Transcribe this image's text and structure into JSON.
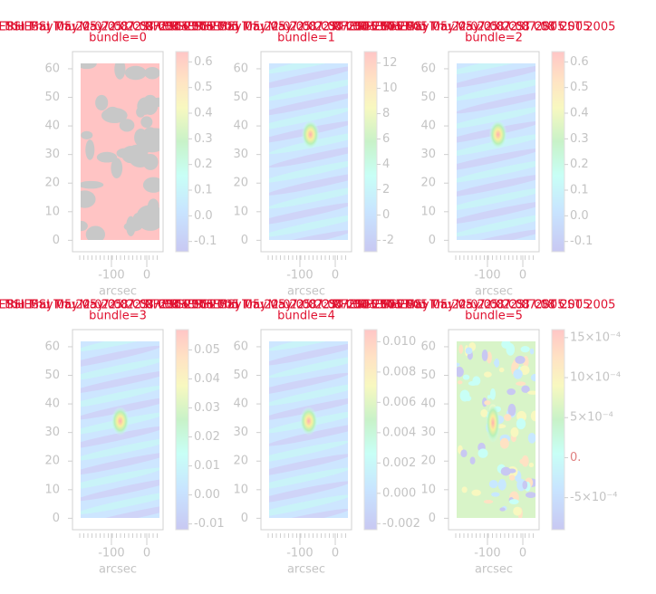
{
  "chart_data": [
    {
      "type": "heatmap",
      "title": "RHESSI Thu May 05 22:07:08 CST 2005",
      "subtitle": "bundle=0",
      "xlabel": "arcsec",
      "xlim": [
        -210,
        46
      ],
      "xticks": [
        -100,
        0
      ],
      "ylim": [
        -4,
        66
      ],
      "yticks": [
        0,
        10,
        20,
        30,
        40,
        50,
        60
      ],
      "clim": [
        -0.14,
        0.64
      ],
      "cticks": [
        -0.1,
        {
          "value": 0,
          "label": "0.0"
        },
        0.1,
        0.2,
        0.3,
        0.4,
        0.5,
        0.6
      ]
    },
    {
      "type": "heatmap",
      "title": "RHESSI Thu May 05 22:07:08 CST 2005",
      "subtitle": "bundle=1",
      "xlabel": "arcsec",
      "xlim": [
        -210,
        46
      ],
      "xticks": [
        -100,
        0
      ],
      "ylim": [
        -4,
        66
      ],
      "yticks": [
        0,
        10,
        20,
        30,
        40,
        50,
        60
      ],
      "clim": [
        -2.9,
        12.9
      ],
      "cticks": [
        -2,
        0,
        2,
        4,
        6,
        8,
        10,
        12
      ]
    },
    {
      "type": "heatmap",
      "title": "RHESSI Thu May 05 22:07:08 CST 2005",
      "subtitle": "bundle=2",
      "xlabel": "arcsec",
      "xlim": [
        -210,
        46
      ],
      "xticks": [
        -100,
        0
      ],
      "ylim": [
        -4,
        66
      ],
      "yticks": [
        0,
        10,
        20,
        30,
        40,
        50,
        60
      ],
      "clim": [
        -0.14,
        0.64
      ],
      "cticks": [
        -0.1,
        {
          "value": 0,
          "label": "0.0"
        },
        0.1,
        0.2,
        0.3,
        0.4,
        0.5,
        0.6
      ]
    },
    {
      "type": "heatmap",
      "title": "RHESSI Thu May 05 22:07:08 CST 2005",
      "subtitle": "bundle=3",
      "xlabel": "arcsec",
      "xlim": [
        -210,
        46
      ],
      "xticks": [
        -100,
        0
      ],
      "ylim": [
        -4,
        66
      ],
      "yticks": [
        0,
        10,
        20,
        30,
        40,
        50,
        60
      ],
      "clim": [
        -0.012,
        0.057
      ],
      "cticks": [
        -0.01,
        {
          "value": 0,
          "label": "0.00"
        },
        0.01,
        0.02,
        0.03,
        0.04,
        0.05
      ]
    },
    {
      "type": "heatmap",
      "title": "RHESSI Thu May 05 22:07:08 CST 2005",
      "subtitle": "bundle=4",
      "xlabel": "arcsec",
      "xlim": [
        -210,
        46
      ],
      "xticks": [
        -100,
        0
      ],
      "ylim": [
        -4,
        66
      ],
      "yticks": [
        0,
        10,
        20,
        30,
        40,
        50,
        60
      ],
      "clim": [
        -0.0024,
        0.0108
      ],
      "cticks": [
        -0.002,
        {
          "value": 0,
          "label": "0.000"
        },
        0.002,
        0.004,
        0.006,
        0.008,
        {
          "value": 0.01,
          "label": "0.010"
        }
      ]
    },
    {
      "type": "heatmap",
      "title": "RHESSI Thu May 05 22:07:08 CST 2005",
      "subtitle": "bundle=5",
      "xlabel": "arcsec",
      "xlim": [
        -210,
        46
      ],
      "xticks": [
        -100,
        0
      ],
      "ylim": [
        -4,
        66
      ],
      "yticks": [
        0,
        10,
        20,
        30,
        40,
        50,
        60
      ],
      "clim": [
        -0.0009,
        0.0016
      ],
      "cticks": [
        {
          "value": -0.0005,
          "label": "-5×10⁻⁴"
        },
        {
          "value": 0,
          "label": "0."
        },
        {
          "value": 0.0005,
          "label": "5×10⁻⁴"
        },
        {
          "value": 0.001,
          "label": "10×10⁻⁴"
        },
        {
          "value": 0.0015,
          "label": "15×10⁻⁴"
        }
      ]
    }
  ]
}
